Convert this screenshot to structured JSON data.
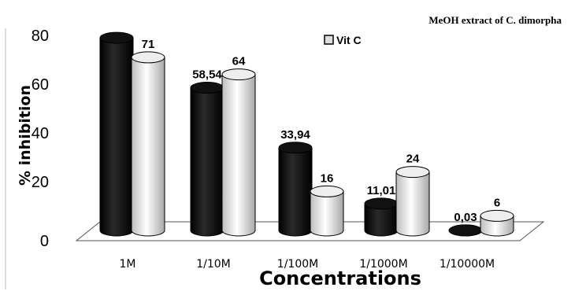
{
  "chart_data": {
    "type": "bar",
    "style": "3d-cylinder",
    "categories": [
      "1M",
      "1/10M",
      "1/100M",
      "1/1000M",
      "1/10000M"
    ],
    "series": [
      {
        "name": "MeOH extract of C. dimorpha",
        "color": "#000000",
        "values": [
          79,
          58.54,
          33.94,
          11.01,
          0.03
        ],
        "labels": [
          "",
          "58,54",
          "33,94",
          "11,01",
          "0,03"
        ]
      },
      {
        "name": "Vit C",
        "color": "#dddddd",
        "values": [
          71,
          64,
          16,
          24,
          6
        ],
        "labels": [
          "71",
          "64",
          "16",
          "24",
          "6"
        ]
      }
    ],
    "ylabel": "% inhibition",
    "xlabel": "Concentrations",
    "ylim": [
      0,
      80
    ],
    "yticks": [
      0,
      20,
      40,
      60,
      80
    ],
    "legend_position": "top-right",
    "grid": false
  }
}
